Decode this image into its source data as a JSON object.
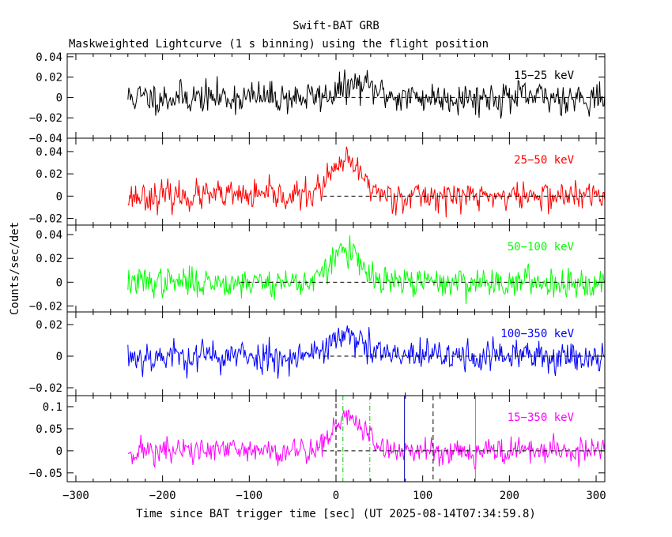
{
  "title": "Swift-BAT GRB",
  "subtitle": "Maskweighted Lightcurve (1 s binning) using the flight position",
  "ylabel": "Counts/sec/det",
  "xlabel": "Time since BAT trigger time [sec] (UT 2025-08-14T07:34:59.8)",
  "chart_data": {
    "type": "line",
    "xlim": [
      -310,
      310
    ],
    "data_start": -240,
    "data_end": 310,
    "x_ticks": [
      -300,
      -200,
      -100,
      0,
      100,
      200,
      300
    ],
    "x_tick_labels": [
      "−300",
      "−200",
      "−100",
      "0",
      "100",
      "200",
      "300"
    ],
    "panels": [
      {
        "name": "15–25 keV",
        "label": "15−25 keV",
        "color": "#000000",
        "ylim": [
          -0.04,
          0.043
        ],
        "yticks": [
          -0.04,
          -0.02,
          0,
          0.02,
          0.04
        ],
        "ytick_labels": [
          "−0.04",
          "−0.02",
          "0",
          "0.02",
          "0.04"
        ],
        "noise": 0.009,
        "peak_amp": 0.012,
        "peak_center": 25,
        "peak_width": 20,
        "seed": 11,
        "zero_line_from": -15
      },
      {
        "name": "25–50 keV",
        "label": "25−50 keV",
        "color": "#ff0000",
        "ylim": [
          -0.026,
          0.052
        ],
        "yticks": [
          -0.02,
          0,
          0.02,
          0.04
        ],
        "ytick_labels": [
          "−0.02",
          "0",
          "0.02",
          "0.04"
        ],
        "noise": 0.0075,
        "peak_amp": 0.03,
        "peak_center": 12,
        "peak_width": 18,
        "seed": 23,
        "zero_line_from": -15
      },
      {
        "name": "50–100 keV",
        "label": "50−100 keV",
        "color": "#00ff00",
        "ylim": [
          -0.025,
          0.048
        ],
        "yticks": [
          -0.02,
          0,
          0.02,
          0.04
        ],
        "ytick_labels": [
          "−0.02",
          "0",
          "0.02",
          "0.04"
        ],
        "noise": 0.007,
        "peak_amp": 0.028,
        "peak_center": 10,
        "peak_width": 15,
        "seed": 37,
        "zero_line_from": -110
      },
      {
        "name": "100–350 keV",
        "label": "100−350 keV",
        "color": "#0000ff",
        "ylim": [
          -0.025,
          0.028
        ],
        "yticks": [
          -0.02,
          0,
          0.02
        ],
        "ytick_labels": [
          "−0.02",
          "0",
          "0.02"
        ],
        "noise": 0.006,
        "peak_amp": 0.012,
        "peak_center": 10,
        "peak_width": 20,
        "seed": 53,
        "zero_line_from": -15
      },
      {
        "name": "15–350 keV",
        "label": "15−350 keV",
        "color": "#ff00ff",
        "ylim": [
          -0.07,
          0.125
        ],
        "yticks": [
          -0.05,
          0,
          0.05,
          0.1
        ],
        "ytick_labels": [
          "−0.05",
          "0",
          "0.05",
          "0.1"
        ],
        "noise": 0.018,
        "peak_amp": 0.075,
        "peak_center": 15,
        "peak_width": 18,
        "seed": 71,
        "zero_line_from": -15
      }
    ],
    "markers": [
      {
        "name": "black-dashed-marker-1",
        "x": 0,
        "color": "#000000",
        "dash": "6,4"
      },
      {
        "name": "black-dashed-marker-2",
        "x": 112,
        "color": "#000000",
        "dash": "6,4"
      },
      {
        "name": "green-dashdot-marker-1",
        "x": 8,
        "color": "#00cc00",
        "dash": "6,3,1,3"
      },
      {
        "name": "green-dashdot-marker-2",
        "x": 39,
        "color": "#00cc00",
        "dash": "6,3,1,3"
      },
      {
        "name": "blue-solid-marker",
        "x": 79,
        "color": "#0000aa",
        "dash": ""
      },
      {
        "name": "orange-solid-marker",
        "x": 161,
        "color": "#d08000",
        "dash": ""
      }
    ]
  }
}
